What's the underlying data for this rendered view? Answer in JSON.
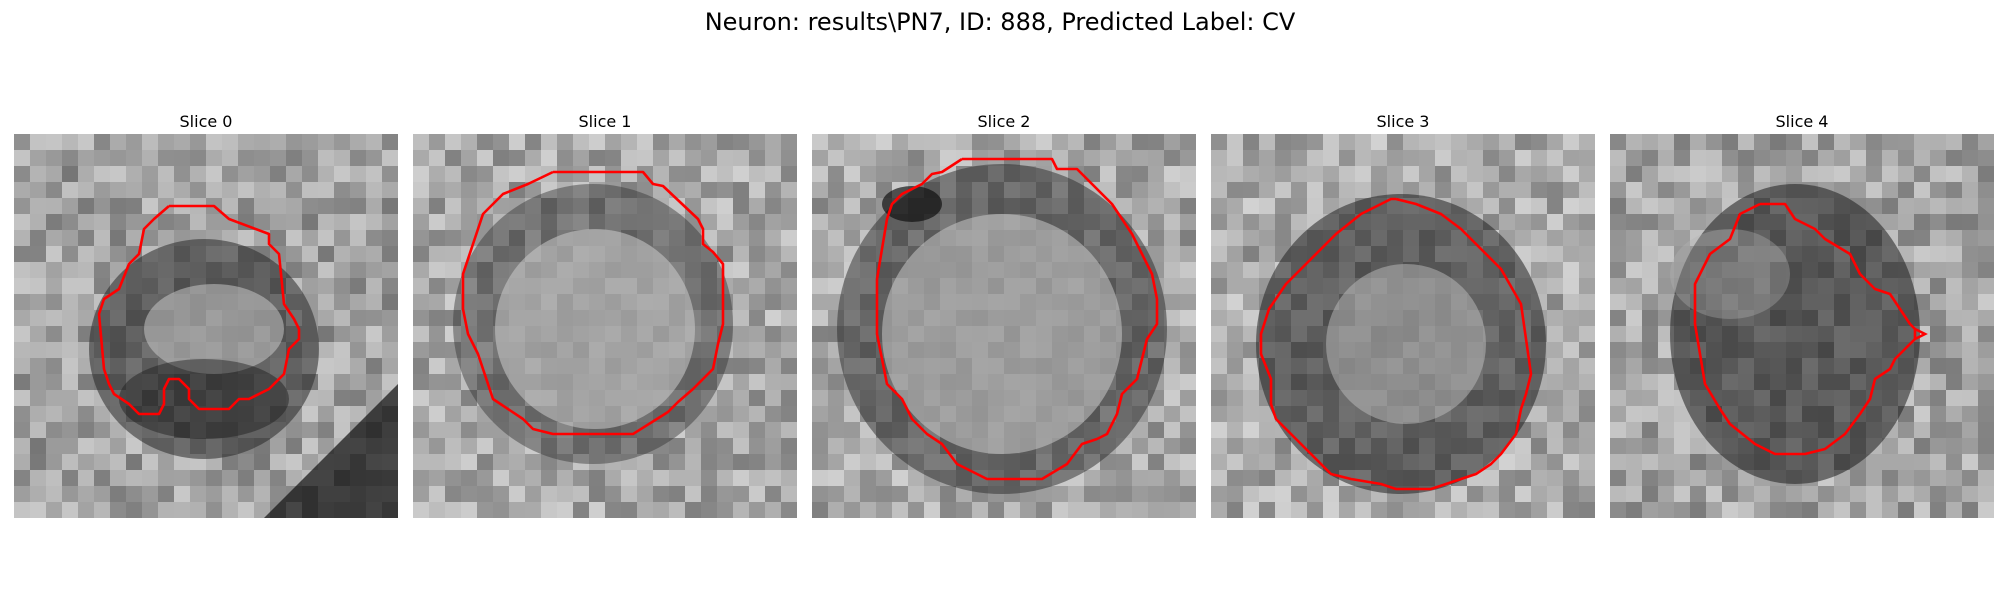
{
  "figure": {
    "title": "Neuron: results\\PN7, ID: 888, Predicted Label: CV",
    "contour_color": "#ff0000"
  },
  "panels": [
    {
      "title": "Slice 0",
      "shape": "irregular-blob-with-notch"
    },
    {
      "title": "Slice 1",
      "shape": "octagon"
    },
    {
      "title": "Slice 2",
      "shape": "octagon"
    },
    {
      "title": "Slice 3",
      "shape": "rotated-polygon"
    },
    {
      "title": "Slice 4",
      "shape": "irregular-with-spur"
    }
  ]
}
